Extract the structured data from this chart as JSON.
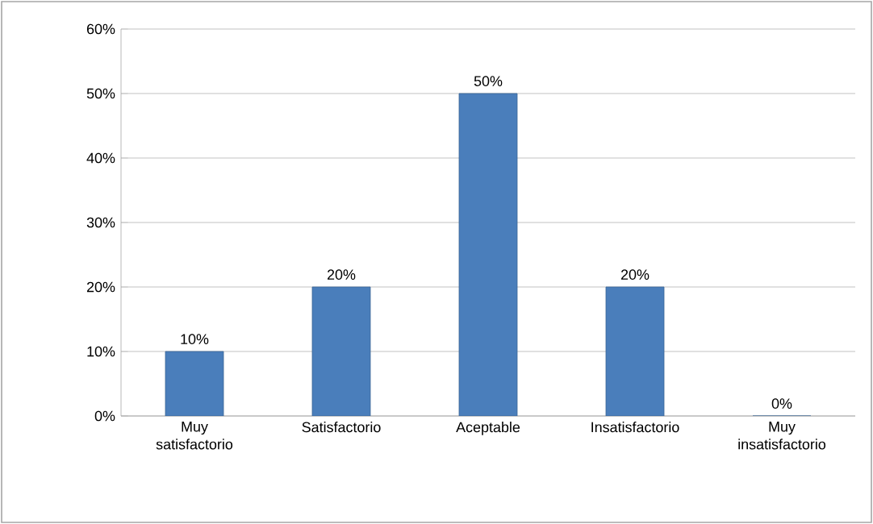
{
  "chart_data": {
    "type": "bar",
    "categories": [
      "Muy satisfactorio",
      "Satisfactorio",
      "Aceptable",
      "Insatisfactorio",
      "Muy insatisfactorio"
    ],
    "values": [
      10,
      20,
      50,
      20,
      0
    ],
    "color": "#4a7ebb",
    "value_labels": [
      "10%",
      "20%",
      "50%",
      "20%",
      "0%"
    ],
    "ylim": [
      0,
      60
    ],
    "yticks": [
      {
        "value": 0,
        "label": "0%"
      },
      {
        "value": 10,
        "label": "10%"
      },
      {
        "value": 20,
        "label": "20%"
      },
      {
        "value": 30,
        "label": "30%"
      },
      {
        "value": 40,
        "label": "40%"
      },
      {
        "value": 50,
        "label": "50%"
      },
      {
        "value": 60,
        "label": "60%"
      }
    ],
    "grid": "y"
  }
}
